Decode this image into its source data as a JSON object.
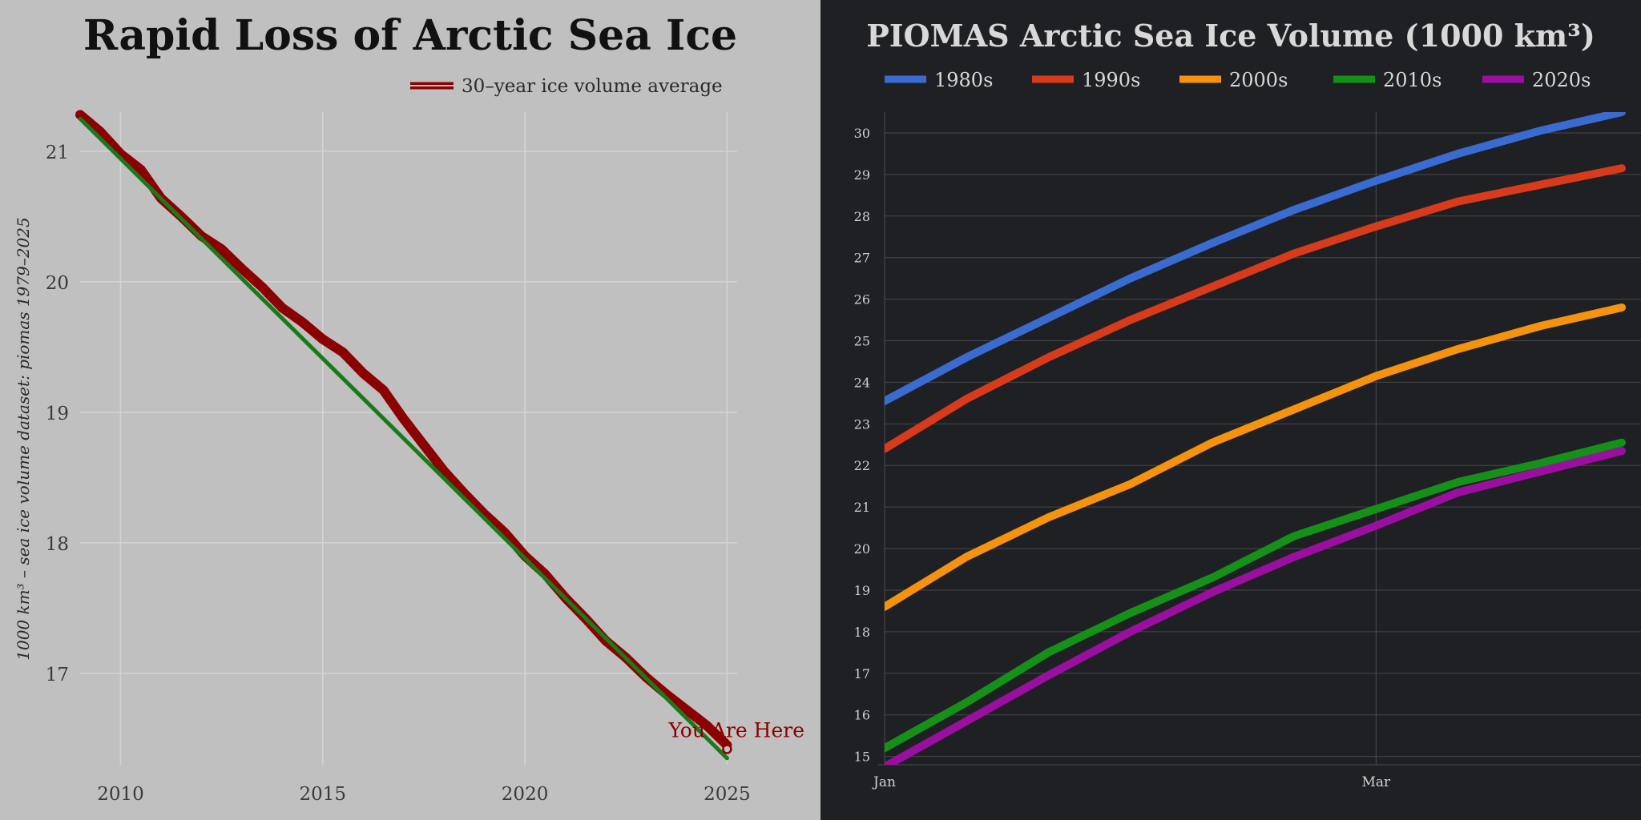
{
  "chart_data": [
    {
      "type": "line",
      "title": "Rapid Loss of Arctic Sea Ice",
      "ylabel": "1000 km³ – sea ice volume dataset: piomas 1979–2025",
      "xlabel": "",
      "xlim": [
        2009.0,
        2025.25
      ],
      "ylim": [
        16.3,
        21.3
      ],
      "x_ticks": [
        "2010",
        "2015",
        "2020",
        "2025"
      ],
      "y_ticks": [
        "17",
        "18",
        "19",
        "20",
        "21"
      ],
      "grid": true,
      "legend_position": "top-right",
      "series": [
        {
          "name": "30–year ice volume average",
          "color": "#8b0000",
          "x": [
            2009.0,
            2009.5,
            2010.0,
            2010.5,
            2011.0,
            2011.5,
            2012.0,
            2012.5,
            2013.0,
            2013.5,
            2014.0,
            2014.5,
            2015.0,
            2015.5,
            2016.0,
            2016.5,
            2017.0,
            2017.5,
            2018.0,
            2018.5,
            2019.0,
            2019.5,
            2020.0,
            2020.5,
            2021.0,
            2021.5,
            2022.0,
            2022.5,
            2023.0,
            2023.5,
            2024.0,
            2024.5,
            2025.0
          ],
          "y": [
            21.28,
            21.15,
            20.98,
            20.86,
            20.64,
            20.5,
            20.35,
            20.25,
            20.1,
            19.96,
            19.8,
            19.69,
            19.56,
            19.46,
            19.3,
            19.17,
            18.95,
            18.75,
            18.55,
            18.38,
            18.22,
            18.08,
            17.9,
            17.76,
            17.58,
            17.42,
            17.25,
            17.12,
            16.97,
            16.84,
            16.72,
            16.6,
            16.45
          ]
        },
        {
          "name": "",
          "color": "#1a7a1a",
          "x": [
            2009.0,
            2025.0
          ],
          "y": [
            21.25,
            16.35
          ]
        }
      ],
      "annotation": {
        "text": "You Are Here",
        "x": 2025.0,
        "y": 16.42,
        "color": "#8b0000"
      }
    },
    {
      "type": "line",
      "title": "PIOMAS Arctic Sea Ice Volume (1000 km³)",
      "xlabel": "",
      "ylabel": "",
      "xlim": [
        0,
        90
      ],
      "ylim": [
        14.8,
        30.5
      ],
      "x_tick_labels": [
        {
          "label": "Jan",
          "x": 0
        },
        {
          "label": "Mar",
          "x": 60
        }
      ],
      "y_ticks": [
        15,
        16,
        17,
        18,
        19,
        20,
        21,
        22,
        23,
        24,
        25,
        26,
        27,
        28,
        29,
        30
      ],
      "grid": true,
      "legend_position": "top",
      "series": [
        {
          "name": "1980s",
          "color": "#3a6bd1",
          "x": [
            0,
            10,
            20,
            30,
            40,
            50,
            60,
            70,
            80,
            90
          ],
          "y": [
            23.55,
            24.6,
            25.55,
            26.5,
            27.35,
            28.15,
            28.85,
            29.5,
            30.05,
            30.5
          ]
        },
        {
          "name": "1990s",
          "color": "#d83a1c",
          "x": [
            0,
            10,
            20,
            30,
            40,
            50,
            60,
            70,
            80,
            90
          ],
          "y": [
            22.4,
            23.6,
            24.6,
            25.5,
            26.3,
            27.1,
            27.75,
            28.35,
            28.75,
            29.15
          ]
        },
        {
          "name": "2000s",
          "color": "#f5920e",
          "x": [
            0,
            10,
            20,
            30,
            40,
            50,
            60,
            70,
            80,
            90
          ],
          "y": [
            18.6,
            19.8,
            20.75,
            21.55,
            22.55,
            23.35,
            24.15,
            24.8,
            25.35,
            25.8
          ]
        },
        {
          "name": "2010s",
          "color": "#159019",
          "x": [
            0,
            10,
            20,
            30,
            40,
            50,
            60,
            70,
            80,
            90
          ],
          "y": [
            15.2,
            16.3,
            17.5,
            18.45,
            19.3,
            20.3,
            20.95,
            21.6,
            22.05,
            22.55
          ]
        },
        {
          "name": "2020s",
          "color": "#9a0fa0",
          "x": [
            0,
            10,
            20,
            30,
            40,
            50,
            60,
            70,
            80,
            90
          ],
          "y": [
            14.75,
            15.85,
            16.95,
            18.0,
            18.95,
            19.8,
            20.55,
            21.35,
            21.85,
            22.35
          ]
        }
      ]
    }
  ]
}
